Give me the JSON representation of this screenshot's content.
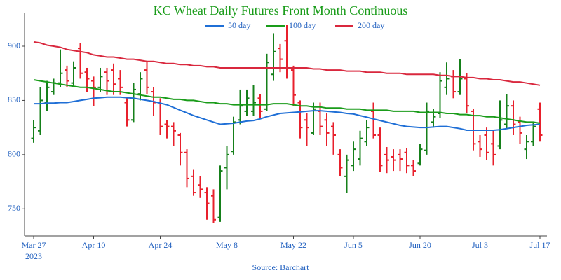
{
  "chart_data": {
    "type": "ohlc",
    "title": "KC Wheat Daily Futures Front Month Continuous",
    "source": "Source: Barchart",
    "year_label": "2023",
    "x": [
      "2023-03-27",
      "2023-03-28",
      "2023-03-29",
      "2023-03-30",
      "2023-03-31",
      "2023-04-03",
      "2023-04-04",
      "2023-04-05",
      "2023-04-06",
      "2023-04-10",
      "2023-04-11",
      "2023-04-12",
      "2023-04-13",
      "2023-04-14",
      "2023-04-17",
      "2023-04-18",
      "2023-04-19",
      "2023-04-20",
      "2023-04-21",
      "2023-04-24",
      "2023-04-25",
      "2023-04-26",
      "2023-04-27",
      "2023-04-28",
      "2023-05-01",
      "2023-05-02",
      "2023-05-03",
      "2023-05-04",
      "2023-05-05",
      "2023-05-08",
      "2023-05-09",
      "2023-05-10",
      "2023-05-11",
      "2023-05-12",
      "2023-05-15",
      "2023-05-16",
      "2023-05-17",
      "2023-05-18",
      "2023-05-19",
      "2023-05-22",
      "2023-05-23",
      "2023-05-24",
      "2023-05-25",
      "2023-05-26",
      "2023-05-30",
      "2023-05-31",
      "2023-06-01",
      "2023-06-02",
      "2023-06-05",
      "2023-06-06",
      "2023-06-07",
      "2023-06-08",
      "2023-06-09",
      "2023-06-12",
      "2023-06-13",
      "2023-06-14",
      "2023-06-15",
      "2023-06-16",
      "2023-06-20",
      "2023-06-21",
      "2023-06-22",
      "2023-06-23",
      "2023-06-26",
      "2023-06-27",
      "2023-06-28",
      "2023-06-29",
      "2023-06-30",
      "2023-07-03",
      "2023-07-05",
      "2023-07-06",
      "2023-07-07",
      "2023-07-10",
      "2023-07-11",
      "2023-07-12",
      "2023-07-13",
      "2023-07-14",
      "2023-07-17"
    ],
    "open": [
      815,
      822,
      848,
      858,
      866,
      878,
      866,
      898,
      876,
      868,
      862,
      876,
      878,
      870,
      848,
      832,
      856,
      878,
      858,
      848,
      828,
      826,
      818,
      802,
      780,
      772,
      765,
      762,
      742,
      788,
      803,
      832,
      840,
      840,
      852,
      842,
      874,
      898,
      905,
      878,
      848,
      832,
      820,
      840,
      832,
      826,
      800,
      780,
      790,
      796,
      812,
      840,
      818,
      800,
      798,
      800,
      802,
      790,
      792,
      804,
      830,
      838,
      862,
      872,
      858,
      870,
      840,
      812,
      818,
      810,
      808,
      828,
      845,
      830,
      805,
      812,
      842
    ],
    "high": [
      832,
      862,
      868,
      870,
      897,
      882,
      886,
      903,
      880,
      872,
      880,
      880,
      884,
      878,
      852,
      866,
      876,
      886,
      862,
      852,
      832,
      830,
      820,
      805,
      786,
      780,
      770,
      768,
      790,
      808,
      835,
      860,
      860,
      864,
      856,
      893,
      912,
      902,
      920,
      882,
      850,
      838,
      848,
      848,
      838,
      830,
      805,
      800,
      812,
      822,
      832,
      848,
      825,
      807,
      805,
      805,
      806,
      795,
      810,
      848,
      842,
      876,
      885,
      878,
      888,
      875,
      842,
      818,
      825,
      822,
      850,
      856,
      850,
      835,
      818,
      830,
      848
    ],
    "low": [
      811,
      818,
      840,
      855,
      862,
      862,
      862,
      870,
      858,
      845,
      858,
      855,
      855,
      855,
      826,
      830,
      850,
      856,
      836,
      818,
      815,
      808,
      790,
      770,
      762,
      760,
      740,
      737,
      738,
      768,
      800,
      828,
      836,
      836,
      834,
      840,
      868,
      876,
      870,
      845,
      815,
      808,
      818,
      818,
      808,
      800,
      780,
      765,
      785,
      790,
      808,
      815,
      784,
      783,
      785,
      785,
      783,
      780,
      790,
      800,
      825,
      834,
      855,
      852,
      855,
      838,
      804,
      798,
      795,
      790,
      805,
      824,
      818,
      810,
      796,
      808,
      812
    ],
    "close": [
      825,
      850,
      862,
      866,
      875,
      868,
      880,
      875,
      870,
      862,
      872,
      868,
      865,
      862,
      832,
      860,
      870,
      862,
      848,
      826,
      826,
      822,
      802,
      778,
      765,
      768,
      755,
      740,
      785,
      800,
      830,
      845,
      852,
      848,
      840,
      885,
      895,
      888,
      880,
      855,
      825,
      825,
      842,
      826,
      820,
      818,
      788,
      795,
      805,
      815,
      825,
      818,
      790,
      795,
      795,
      796,
      790,
      785,
      805,
      840,
      835,
      868,
      870,
      858,
      870,
      845,
      810,
      805,
      802,
      800,
      832,
      845,
      828,
      820,
      812,
      826,
      818
    ],
    "up_color": "#15801a",
    "down_color": "#e8202c",
    "series": [
      {
        "name": "50 day",
        "color": "#1f6fd6",
        "values": [
          847,
          847,
          847.5,
          847.5,
          848,
          848,
          849,
          850,
          851,
          852,
          852.5,
          853,
          853,
          853,
          852.5,
          852,
          851,
          850,
          849,
          847.5,
          846,
          843.5,
          841,
          838.5,
          836,
          834,
          832,
          830,
          828,
          828.5,
          829,
          830,
          831,
          831.5,
          833,
          835,
          836.5,
          838,
          838.5,
          839,
          839.5,
          840,
          840.5,
          840.5,
          840,
          839.5,
          839,
          838,
          837.5,
          836,
          834.5,
          833,
          831.5,
          830,
          828.5,
          827,
          826,
          825.5,
          825,
          825,
          825.5,
          826,
          826,
          825,
          824,
          822.5,
          822.5,
          822.5,
          822.5,
          822.5,
          823,
          824,
          825,
          826,
          827,
          827.5,
          828
        ]
      },
      {
        "name": "100 day",
        "color": "#1a9c1a",
        "values": [
          869,
          868,
          867,
          866,
          865,
          864,
          863,
          862,
          862,
          861,
          860,
          859,
          858,
          858,
          857,
          856,
          855,
          854,
          853,
          853,
          852,
          851,
          851,
          850,
          850,
          849,
          848,
          848,
          847,
          847,
          846,
          846,
          846,
          846,
          846,
          846,
          847,
          847,
          847,
          846,
          845,
          845,
          844,
          844,
          843,
          843,
          843,
          842,
          842,
          842,
          841,
          841,
          841,
          841,
          840,
          840,
          840,
          840,
          839,
          839,
          839,
          839,
          838,
          838,
          837,
          837,
          836,
          836,
          835,
          835,
          834,
          833,
          832,
          831,
          830,
          830,
          829
        ]
      },
      {
        "name": "200 day",
        "color": "#d9283e",
        "values": [
          904,
          903,
          901,
          900,
          899,
          897,
          896,
          895,
          894,
          892,
          891,
          890,
          890,
          889,
          888,
          888,
          887,
          886,
          886,
          885,
          884,
          884,
          883,
          883,
          882,
          882,
          881,
          881,
          880,
          880,
          880,
          880,
          880,
          880,
          880,
          880,
          880,
          880,
          880,
          880,
          880,
          880,
          879,
          879,
          878,
          878,
          878,
          877,
          877,
          877,
          876,
          876,
          876,
          875,
          875,
          875,
          874,
          874,
          874,
          874,
          874,
          873,
          873,
          872,
          872,
          871,
          871,
          870,
          870,
          869,
          869,
          868,
          867,
          867,
          866,
          865,
          864
        ]
      }
    ],
    "ylim": [
      725,
      931
    ],
    "yticks": [
      750,
      800,
      850,
      900
    ],
    "xticks": [
      {
        "value": "2023-03-27",
        "label": "Mar 27"
      },
      {
        "value": "2023-04-10",
        "label": "Apr 10"
      },
      {
        "value": "2023-04-24",
        "label": "Apr 24"
      },
      {
        "value": "2023-05-08",
        "label": "May 8"
      },
      {
        "value": "2023-05-22",
        "label": "May 22"
      },
      {
        "value": "2023-06-05",
        "label": "Jun 5"
      },
      {
        "value": "2023-06-20",
        "label": "Jun 20"
      },
      {
        "value": "2023-07-03",
        "label": "Jul 3"
      },
      {
        "value": "2023-07-17",
        "label": "Jul 17"
      }
    ],
    "grid": false,
    "legend": "top"
  }
}
